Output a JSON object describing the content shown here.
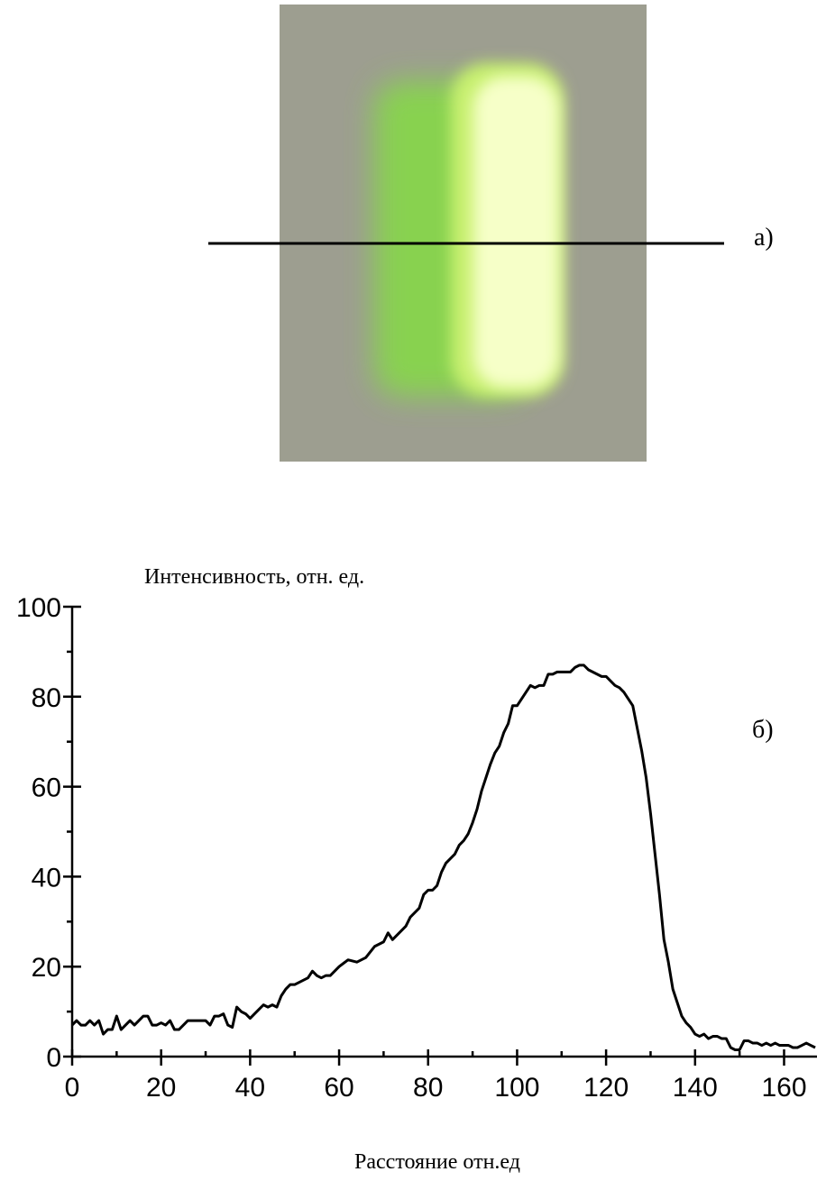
{
  "chart_data": {
    "type": "line",
    "ylabel": "Интенсивность, отн. ед.",
    "xlabel": "Расстояние отн.ед",
    "annotations": [
      "а)",
      "б)"
    ],
    "xlim": [
      0,
      167.4
    ],
    "ylim": [
      0,
      100
    ],
    "xticks": [
      0,
      20,
      40,
      60,
      80,
      100,
      120,
      140,
      160
    ],
    "yticks": [
      0,
      20,
      40,
      60,
      80,
      100
    ],
    "xminorticks": [
      10,
      30,
      50,
      70,
      90,
      110,
      130,
      150
    ],
    "yminorticks": [
      10,
      30,
      50,
      70,
      90
    ],
    "series": [
      {
        "color": "#000000",
        "x": [
          0,
          1,
          2,
          3,
          4,
          5,
          6,
          7,
          8,
          9,
          10,
          11,
          12,
          13,
          14,
          15,
          16,
          17,
          18,
          19,
          20,
          21,
          22,
          23,
          24,
          25,
          26,
          28,
          30,
          31,
          32,
          33,
          34,
          35,
          36,
          37,
          38,
          39,
          40,
          42,
          43,
          44,
          45,
          46,
          47,
          48,
          49,
          50,
          52,
          53,
          54,
          55,
          56,
          57,
          58,
          60,
          62,
          64,
          66,
          68,
          70,
          71,
          72,
          74,
          75,
          76,
          78,
          79,
          80,
          81,
          82,
          83,
          84,
          86,
          87,
          88,
          89,
          90,
          91,
          92,
          93,
          94,
          95,
          96,
          97,
          98,
          99,
          100,
          101,
          102,
          103,
          104,
          105,
          106,
          107,
          108,
          109,
          110,
          111,
          112,
          113,
          114,
          115,
          116,
          117,
          118,
          119,
          120,
          121,
          122,
          123,
          124,
          125,
          126,
          127,
          128,
          129,
          130,
          131,
          132,
          133,
          134,
          135,
          136,
          137,
          138,
          139,
          140,
          141,
          142,
          143,
          144,
          145,
          146,
          147,
          148,
          149,
          150,
          151,
          152,
          153,
          154,
          155,
          156,
          157,
          158,
          159,
          160,
          161,
          162,
          163,
          164,
          165,
          166,
          167
        ],
        "values": [
          7,
          8,
          7,
          7,
          8,
          7,
          8,
          5,
          6,
          6,
          9,
          6,
          7,
          8,
          7,
          8,
          9,
          9,
          7,
          7,
          7.5,
          7,
          8,
          6,
          6,
          7,
          8,
          8,
          8,
          7,
          9,
          9,
          9.5,
          7,
          6.5,
          11,
          10,
          9.5,
          8.5,
          10.5,
          11.5,
          11,
          11.5,
          11,
          13.5,
          15,
          16,
          16,
          17,
          17.5,
          19,
          18,
          17.5,
          18,
          18,
          20,
          21.5,
          21,
          22,
          24.5,
          25.5,
          27.5,
          26,
          28,
          29,
          31,
          33,
          36,
          37,
          37,
          38,
          41,
          43,
          45,
          47,
          48,
          49.5,
          52,
          55,
          59,
          62,
          65,
          67.5,
          69,
          72,
          74,
          78,
          78,
          79.5,
          81,
          82.5,
          82,
          82.5,
          82.5,
          85,
          85,
          85.5,
          85.5,
          85.5,
          85.5,
          86.5,
          87,
          87,
          86,
          85.5,
          85,
          84.5,
          84.5,
          83.5,
          82.5,
          82,
          81,
          79.5,
          78,
          73,
          68,
          62,
          54,
          45,
          36,
          26,
          21,
          15,
          12,
          9,
          7.5,
          6.5,
          5,
          4.5,
          5,
          4,
          4.5,
          4.5,
          4,
          4,
          2,
          1.5,
          1.5,
          3.5,
          3.5,
          3,
          3,
          2.5,
          3,
          2.5,
          3,
          2.5,
          2.5,
          2.5,
          2,
          2,
          2.5,
          3,
          2.5,
          2
        ]
      }
    ]
  }
}
